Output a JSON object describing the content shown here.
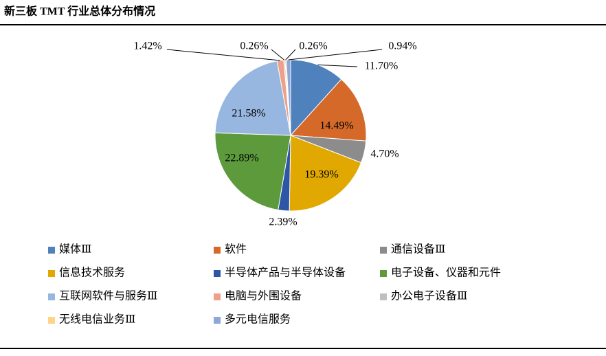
{
  "chart_data": {
    "type": "pie",
    "title": "新三板 TMT 行业总体分布情况",
    "categories": [
      "媒体Ⅲ",
      "软件",
      "通信设备Ⅲ",
      "信息技术服务",
      "半导体产品与半导体设备",
      "电子设备、仪器和元件",
      "互联网软件与服务Ⅲ",
      "电脑与外围设备",
      "办公电子设备Ⅲ",
      "无线电信业务Ⅲ",
      "多元电信服务"
    ],
    "values": [
      11.7,
      14.49,
      4.7,
      19.39,
      2.39,
      22.89,
      21.58,
      1.42,
      0.26,
      0.26,
      0.94
    ],
    "value_labels": [
      "11.70%",
      "14.49%",
      "4.70%",
      "19.39%",
      "2.39%",
      "22.89%",
      "21.58%",
      "1.42%",
      "0.26%",
      "0.26%",
      "0.94%"
    ],
    "colors": [
      "#4f81bd",
      "#d4692a",
      "#8c8c8c",
      "#e0a800",
      "#2e56a6",
      "#5c9a3c",
      "#97b7e0",
      "#eea18a",
      "#bfbfbf",
      "#fdd488",
      "#8ea7d6"
    ]
  }
}
